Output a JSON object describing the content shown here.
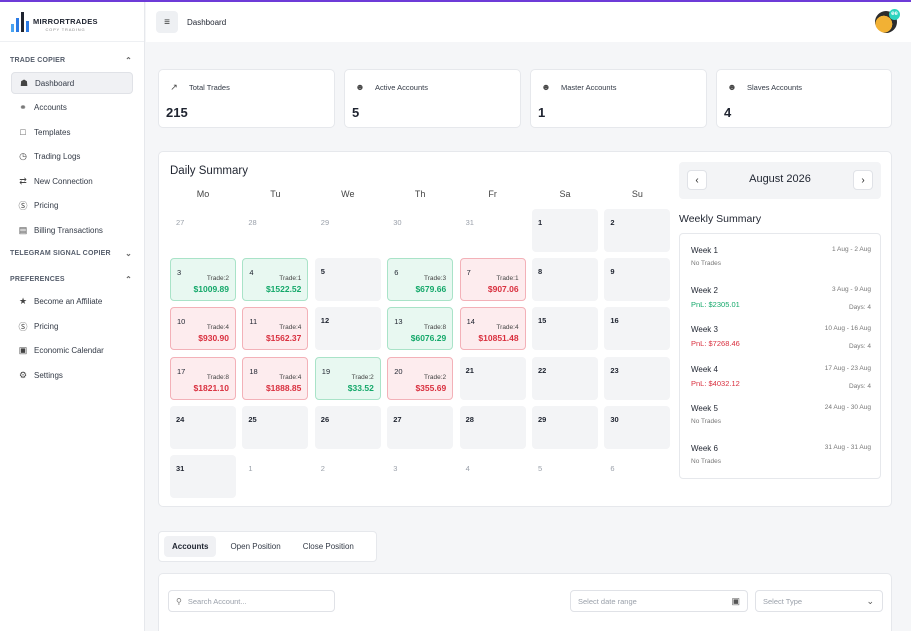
{
  "brand": {
    "name": "MIRRORTRADES",
    "tagline": "COPY TRADING"
  },
  "sidebar": {
    "sections": [
      {
        "title": "TRADE COPIER",
        "chevron": "^",
        "items": [
          {
            "label": "Dashboard",
            "icon": "home-icon"
          },
          {
            "label": "Accounts",
            "icon": "users-icon"
          },
          {
            "label": "Templates",
            "icon": "monitor-icon"
          },
          {
            "label": "Trading Logs",
            "icon": "clock-icon"
          },
          {
            "label": "New Connection",
            "icon": "link-icon"
          },
          {
            "label": "Pricing",
            "icon": "dollar-icon"
          },
          {
            "label": "Billing Transactions",
            "icon": "wallet-icon"
          }
        ]
      },
      {
        "title": "TELEGRAM SIGNAL COPIER",
        "chevron": "v",
        "items": []
      },
      {
        "title": "PREFERENCES",
        "chevron": "^",
        "items": [
          {
            "label": "Become an Affiliate",
            "icon": "trophy-icon"
          },
          {
            "label": "Pricing",
            "icon": "dollar-icon"
          },
          {
            "label": "Economic Calendar",
            "icon": "calendar-icon"
          },
          {
            "label": "Settings",
            "icon": "gear-icon"
          }
        ]
      }
    ]
  },
  "topbar": {
    "breadcrumb": "Dashboard",
    "avatar_badge": "ee"
  },
  "stats": [
    {
      "label": "Total Trades",
      "value": "215",
      "icon": "trend-icon"
    },
    {
      "label": "Active Accounts",
      "value": "5",
      "icon": "user-icon"
    },
    {
      "label": "Master Accounts",
      "value": "1",
      "icon": "user-icon"
    },
    {
      "label": "Slaves Accounts",
      "value": "4",
      "icon": "user-icon"
    }
  ],
  "calendar": {
    "title": "Daily Summary",
    "month_label": "August 2026",
    "prev": "‹",
    "next": "›",
    "weekdays": [
      "Mo",
      "Tu",
      "We",
      "Th",
      "Fr",
      "Sa",
      "Su"
    ],
    "cells": [
      {
        "day": "27",
        "type": "muted"
      },
      {
        "day": "28",
        "type": "muted"
      },
      {
        "day": "29",
        "type": "muted"
      },
      {
        "day": "30",
        "type": "muted"
      },
      {
        "day": "31",
        "type": "muted"
      },
      {
        "day": "1",
        "type": "cur"
      },
      {
        "day": "2",
        "type": "cur"
      },
      {
        "day": "3",
        "type": "win",
        "trades": "Trade:2",
        "amount": "$1009.89"
      },
      {
        "day": "4",
        "type": "win",
        "trades": "Trade:1",
        "amount": "$1522.52"
      },
      {
        "day": "5",
        "type": "cur"
      },
      {
        "day": "6",
        "type": "win",
        "trades": "Trade:3",
        "amount": "$679.66"
      },
      {
        "day": "7",
        "type": "loss",
        "trades": "Trade:1",
        "amount": "$907.06"
      },
      {
        "day": "8",
        "type": "cur"
      },
      {
        "day": "9",
        "type": "cur"
      },
      {
        "day": "10",
        "type": "loss",
        "trades": "Trade:4",
        "amount": "$930.90"
      },
      {
        "day": "11",
        "type": "loss",
        "trades": "Trade:4",
        "amount": "$1562.37"
      },
      {
        "day": "12",
        "type": "cur"
      },
      {
        "day": "13",
        "type": "win",
        "trades": "Trade:8",
        "amount": "$6076.29"
      },
      {
        "day": "14",
        "type": "loss",
        "trades": "Trade:4",
        "amount": "$10851.48"
      },
      {
        "day": "15",
        "type": "cur"
      },
      {
        "day": "16",
        "type": "cur"
      },
      {
        "day": "17",
        "type": "loss",
        "trades": "Trade:8",
        "amount": "$1821.10"
      },
      {
        "day": "18",
        "type": "loss",
        "trades": "Trade:4",
        "amount": "$1888.85"
      },
      {
        "day": "19",
        "type": "win",
        "trades": "Trade:2",
        "amount": "$33.52"
      },
      {
        "day": "20",
        "type": "loss",
        "trades": "Trade:2",
        "amount": "$355.69"
      },
      {
        "day": "21",
        "type": "cur"
      },
      {
        "day": "22",
        "type": "cur"
      },
      {
        "day": "23",
        "type": "cur"
      },
      {
        "day": "24",
        "type": "cur"
      },
      {
        "day": "25",
        "type": "cur"
      },
      {
        "day": "26",
        "type": "cur"
      },
      {
        "day": "27",
        "type": "cur"
      },
      {
        "day": "28",
        "type": "cur"
      },
      {
        "day": "29",
        "type": "cur"
      },
      {
        "day": "30",
        "type": "cur"
      },
      {
        "day": "31",
        "type": "cur"
      },
      {
        "day": "1",
        "type": "muted"
      },
      {
        "day": "2",
        "type": "muted"
      },
      {
        "day": "3",
        "type": "muted"
      },
      {
        "day": "4",
        "type": "muted"
      },
      {
        "day": "5",
        "type": "muted"
      },
      {
        "day": "6",
        "type": "muted"
      }
    ]
  },
  "weekly": {
    "title": "Weekly Summary",
    "weeks": [
      {
        "name": "Week 1",
        "range": "1 Aug - 2 Aug",
        "summary": "No Trades",
        "kind": "no",
        "days": ""
      },
      {
        "name": "Week 2",
        "range": "3 Aug - 9 Aug",
        "summary": "PnL: $2305.01",
        "kind": "pos",
        "days": "Days: 4"
      },
      {
        "name": "Week 3",
        "range": "10 Aug - 16 Aug",
        "summary": "PnL: $7268.46",
        "kind": "neg",
        "days": "Days: 4"
      },
      {
        "name": "Week 4",
        "range": "17 Aug - 23 Aug",
        "summary": "PnL: $4032.12",
        "kind": "neg",
        "days": "Days: 4"
      },
      {
        "name": "Week 5",
        "range": "24 Aug - 30 Aug",
        "summary": "No Trades",
        "kind": "no",
        "days": ""
      },
      {
        "name": "Week 6",
        "range": "31 Aug - 31 Aug",
        "summary": "No Trades",
        "kind": "no",
        "days": ""
      }
    ]
  },
  "tabs": [
    "Accounts",
    "Open Position",
    "Close Position"
  ],
  "filters": {
    "search_placeholder": "Search Account...",
    "date_placeholder": "Select date range",
    "type_placeholder": "Select Type"
  },
  "colors": {
    "win": "#14a86a",
    "loss": "#d9303f",
    "accent": "#6d3bd8"
  }
}
